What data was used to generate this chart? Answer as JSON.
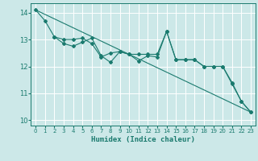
{
  "xlabel": "Humidex (Indice chaleur)",
  "background_color": "#cce8e8",
  "grid_color": "#ffffff",
  "line_color": "#1a7a6e",
  "xlim": [
    -0.5,
    23.5
  ],
  "ylim": [
    9.8,
    14.35
  ],
  "yticks": [
    10,
    11,
    12,
    13,
    14
  ],
  "xticks": [
    0,
    1,
    2,
    3,
    4,
    5,
    6,
    7,
    8,
    9,
    10,
    11,
    12,
    13,
    14,
    15,
    16,
    17,
    18,
    19,
    20,
    21,
    22,
    23
  ],
  "series": {
    "line1_x": [
      0,
      1,
      2,
      3,
      4,
      5,
      6,
      7,
      8,
      9,
      10,
      11,
      12,
      13,
      14,
      15,
      16,
      17,
      18,
      19,
      20,
      21,
      22,
      23
    ],
    "line1_y": [
      14.1,
      13.7,
      13.1,
      13.0,
      13.0,
      13.05,
      12.85,
      12.35,
      12.5,
      12.55,
      12.45,
      12.45,
      12.45,
      12.45,
      13.3,
      12.25,
      12.25,
      12.25,
      12.0,
      12.0,
      12.0,
      11.35,
      10.7,
      10.3
    ],
    "line2_x": [
      2,
      3,
      4,
      5,
      6,
      7,
      8,
      9,
      10,
      11,
      12,
      13,
      14,
      15,
      16,
      17,
      18,
      19,
      20,
      21,
      22,
      23
    ],
    "line2_y": [
      13.1,
      12.85,
      12.75,
      12.9,
      13.05,
      12.4,
      12.15,
      12.55,
      12.45,
      12.2,
      12.4,
      12.35,
      13.3,
      12.25,
      12.25,
      12.25,
      12.0,
      12.0,
      12.0,
      11.4,
      10.7,
      10.3
    ],
    "line3_x": [
      0,
      23
    ],
    "line3_y": [
      14.1,
      10.3
    ]
  }
}
